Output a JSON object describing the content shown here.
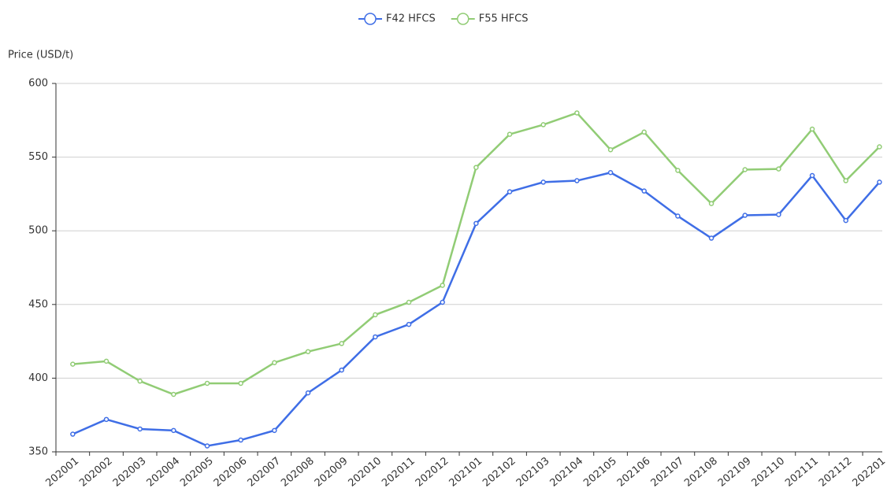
{
  "chart_data": {
    "type": "line",
    "y_axis_label": "Price (USD/t)",
    "categories": [
      "202001",
      "202002",
      "202003",
      "202004",
      "202005",
      "202006",
      "202007",
      "202008",
      "202009",
      "202010",
      "202011",
      "202012",
      "202101",
      "202102",
      "202103",
      "202104",
      "202105",
      "202106",
      "202107",
      "202108",
      "202109",
      "202110",
      "202111",
      "202112",
      "202201"
    ],
    "series": [
      {
        "name": "F42 HFCS",
        "color": "#3f6ee6",
        "values": [
          362,
          372,
          365.5,
          364.5,
          354,
          358,
          364.5,
          390,
          405.5,
          428,
          436.5,
          451.5,
          505,
          526.5,
          533,
          534,
          539.5,
          527,
          510,
          495,
          510.5,
          511,
          537.5,
          507,
          533
        ]
      },
      {
        "name": "F55 HFCS",
        "color": "#91cc75",
        "values": [
          409.5,
          411.5,
          398,
          389,
          396.5,
          396.5,
          410.5,
          418,
          423.5,
          443,
          451.5,
          463,
          543,
          565.5,
          572,
          580,
          555,
          567,
          541,
          518.5,
          541.5,
          542,
          569,
          534,
          557
        ]
      }
    ],
    "ylim": [
      350,
      600
    ],
    "yticks": [
      350,
      400,
      450,
      500,
      550,
      600
    ],
    "grid": true,
    "legend": "top"
  }
}
